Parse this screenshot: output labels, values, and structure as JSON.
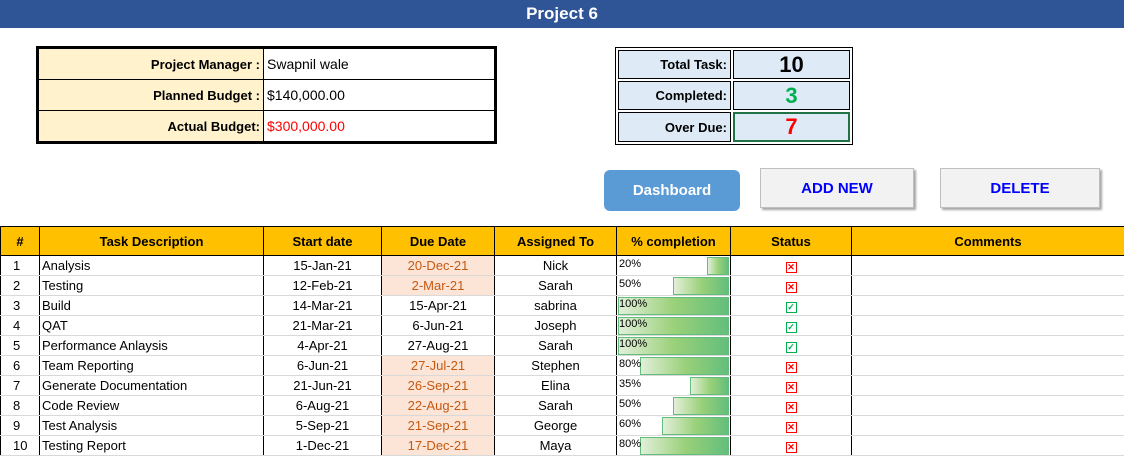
{
  "title": "Project 6",
  "info": {
    "manager_label": "Project Manager :",
    "manager_value": "Swapnil wale",
    "planned_label": "Planned  Budget :",
    "planned_value": "$140,000.00",
    "actual_label": "Actual Budget:",
    "actual_value": "$300,000.00"
  },
  "stats": {
    "total_label": "Total Task:",
    "total_value": "10",
    "completed_label": "Completed:",
    "completed_value": "3",
    "overdue_label": "Over Due:",
    "overdue_value": "7"
  },
  "buttons": {
    "dashboard": "Dashboard",
    "add_new": "ADD NEW",
    "delete": "DELETE"
  },
  "columns": [
    "#",
    "Task Description",
    "Start date",
    "Due Date",
    "Assigned To",
    "% completion",
    "Status",
    "Comments"
  ],
  "colors": {
    "header_bg": "#2f5597",
    "column_header_bg": "#ffc000",
    "label_bg": "#fff2cc",
    "stat_bg": "#deebf7",
    "completed_color": "#00b050",
    "overdue_color": "#ff0000"
  },
  "tasks": [
    {
      "num": "1",
      "desc": "Analysis",
      "start": "15-Jan-21",
      "due": "20-Dec-21",
      "late": true,
      "assigned": "Nick",
      "pct": "20%",
      "pct_value": 0.2,
      "status": "overdue",
      "status_icon": "cross-box-icon"
    },
    {
      "num": "2",
      "desc": "Testing",
      "start": "12-Feb-21",
      "due": "2-Mar-21",
      "late": true,
      "assigned": "Sarah",
      "pct": "50%",
      "pct_value": 0.5,
      "status": "overdue",
      "status_icon": "cross-box-icon"
    },
    {
      "num": "3",
      "desc": "Build",
      "start": "14-Mar-21",
      "due": "15-Apr-21",
      "late": false,
      "assigned": "sabrina",
      "pct": "100%",
      "pct_value": 1.0,
      "status": "done",
      "status_icon": "check-box-icon"
    },
    {
      "num": "4",
      "desc": "QAT",
      "start": "21-Mar-21",
      "due": "6-Jun-21",
      "late": false,
      "assigned": "Joseph",
      "pct": "100%",
      "pct_value": 1.0,
      "status": "done",
      "status_icon": "check-box-icon"
    },
    {
      "num": "5",
      "desc": "Performance Anlaysis",
      "start": "4-Apr-21",
      "due": "27-Aug-21",
      "late": false,
      "assigned": "Sarah",
      "pct": "100%",
      "pct_value": 1.0,
      "status": "done",
      "status_icon": "check-box-icon"
    },
    {
      "num": "6",
      "desc": "Team Reporting",
      "start": "6-Jun-21",
      "due": "27-Jul-21",
      "late": true,
      "assigned": "Stephen",
      "pct": "80%",
      "pct_value": 0.8,
      "status": "overdue",
      "status_icon": "cross-box-icon"
    },
    {
      "num": "7",
      "desc": "Generate Documentation",
      "start": "21-Jun-21",
      "due": "26-Sep-21",
      "late": true,
      "assigned": "Elina",
      "pct": "35%",
      "pct_value": 0.35,
      "status": "overdue",
      "status_icon": "cross-box-icon"
    },
    {
      "num": "8",
      "desc": "Code Review",
      "start": "6-Aug-21",
      "due": "22-Aug-21",
      "late": true,
      "assigned": "Sarah",
      "pct": "50%",
      "pct_value": 0.5,
      "status": "overdue",
      "status_icon": "cross-box-icon"
    },
    {
      "num": "9",
      "desc": "Test Analysis",
      "start": "5-Sep-21",
      "due": "21-Sep-21",
      "late": true,
      "assigned": "George",
      "pct": "60%",
      "pct_value": 0.6,
      "status": "overdue",
      "status_icon": "cross-box-icon"
    },
    {
      "num": "10",
      "desc": "Testing Report",
      "start": "1-Dec-21",
      "due": "17-Dec-21",
      "late": true,
      "assigned": "Maya",
      "pct": "80%",
      "pct_value": 0.8,
      "status": "overdue",
      "status_icon": "cross-box-icon"
    }
  ]
}
